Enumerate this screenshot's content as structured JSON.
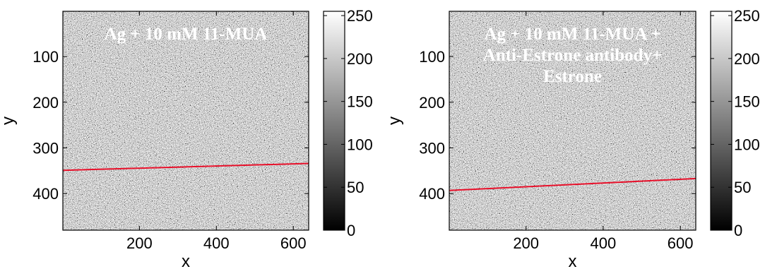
{
  "chart_data": [
    {
      "type": "heatmap",
      "title": "",
      "xlabel": "x",
      "ylabel": "y",
      "xlim": [
        1,
        640
      ],
      "ylim": [
        1,
        480
      ],
      "y_reversed": true,
      "xticks": [
        200,
        400,
        600
      ],
      "yticks": [
        100,
        200,
        300,
        400
      ],
      "colormap": "gray",
      "clim": [
        0,
        255
      ],
      "colorbar_ticks": [
        0,
        50,
        100,
        150,
        200,
        250
      ],
      "annotation_lines": [
        "Ag + 10 mM 11-MUA"
      ],
      "overlay_line": {
        "color": "#e8102a",
        "x": [
          1,
          640
        ],
        "y": [
          349,
          334
        ]
      }
    },
    {
      "type": "heatmap",
      "title": "",
      "xlabel": "x",
      "ylabel": "y",
      "xlim": [
        1,
        640
      ],
      "ylim": [
        1,
        480
      ],
      "y_reversed": true,
      "xticks": [
        200,
        400,
        600
      ],
      "yticks": [
        100,
        200,
        300,
        400
      ],
      "colormap": "gray",
      "clim": [
        0,
        255
      ],
      "colorbar_ticks": [
        0,
        50,
        100,
        150,
        200,
        250
      ],
      "annotation_lines": [
        "Ag + 10 mM 11-MUA +",
        "Anti-Estrone antibody+",
        "Estrone"
      ],
      "overlay_line": {
        "color": "#e8102a",
        "x": [
          1,
          640
        ],
        "y": [
          393,
          367
        ]
      }
    }
  ]
}
